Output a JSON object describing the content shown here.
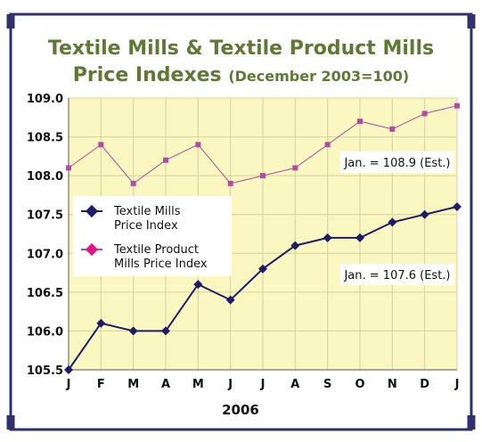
{
  "title": {
    "line1": "Textile Mills & Textile Product Mills",
    "line2": "Price Indexes",
    "subtitle": "(December 2003=100)"
  },
  "colors": {
    "frame": "#303070",
    "plot_bg": "#fbf7c0",
    "grid": "#d8d0a0",
    "title": "#5e7a32",
    "series_mills": "#1c1c6a",
    "series_product": "#b24aa6",
    "legend_marker_product": "#e0158a"
  },
  "chart_data": {
    "type": "line",
    "title": "Textile Mills & Textile Product Mills Price Indexes (December 2003=100)",
    "xlabel": "2006",
    "ylabel": "",
    "categories": [
      "J",
      "F",
      "M",
      "A",
      "M",
      "J",
      "J",
      "A",
      "S",
      "O",
      "N",
      "D",
      "J"
    ],
    "ylim": [
      105.5,
      109.0
    ],
    "yticks": [
      "105.5",
      "106.0",
      "106.5",
      "107.0",
      "107.5",
      "108.0",
      "108.5",
      "109.0"
    ],
    "grid": true,
    "legend_position": "center-left",
    "series": [
      {
        "name": "Textile Mills Price Index",
        "legend_lines": [
          "Textile Mills",
          "Price Index"
        ],
        "values": [
          105.5,
          106.1,
          106.0,
          106.0,
          106.6,
          106.4,
          106.8,
          107.1,
          107.2,
          107.2,
          107.4,
          107.5,
          107.6
        ]
      },
      {
        "name": "Textile Product Mills Price Index",
        "legend_lines": [
          "Textile Product",
          "Mills Price Index"
        ],
        "values": [
          108.1,
          108.4,
          107.9,
          108.2,
          108.4,
          107.9,
          108.0,
          108.1,
          108.4,
          108.7,
          108.6,
          108.8,
          108.9
        ]
      }
    ],
    "annotations": [
      {
        "text": "Jan. = 108.9 (Est.)",
        "series": 1
      },
      {
        "text": "Jan. = 107.6 (Est.)",
        "series": 0
      }
    ]
  }
}
